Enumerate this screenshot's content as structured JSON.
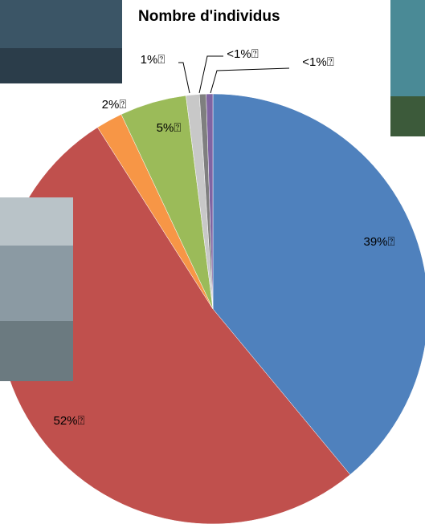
{
  "chart_data": {
    "type": "pie",
    "title": "Nombre d'individus",
    "values": [
      39,
      52,
      2,
      5,
      1,
      0.5,
      0.5
    ],
    "value_labels": [
      "39%⍰",
      "52%⍰",
      "2%⍰",
      "5%⍰",
      "1%⍰",
      "<1%⍰",
      "<1%⍰"
    ],
    "colors": [
      "#4f81bd",
      "#c0504d",
      "#f79646",
      "#9bbb59",
      "#c8c8c8",
      "#7f7f7f",
      "#8064a2"
    ]
  }
}
